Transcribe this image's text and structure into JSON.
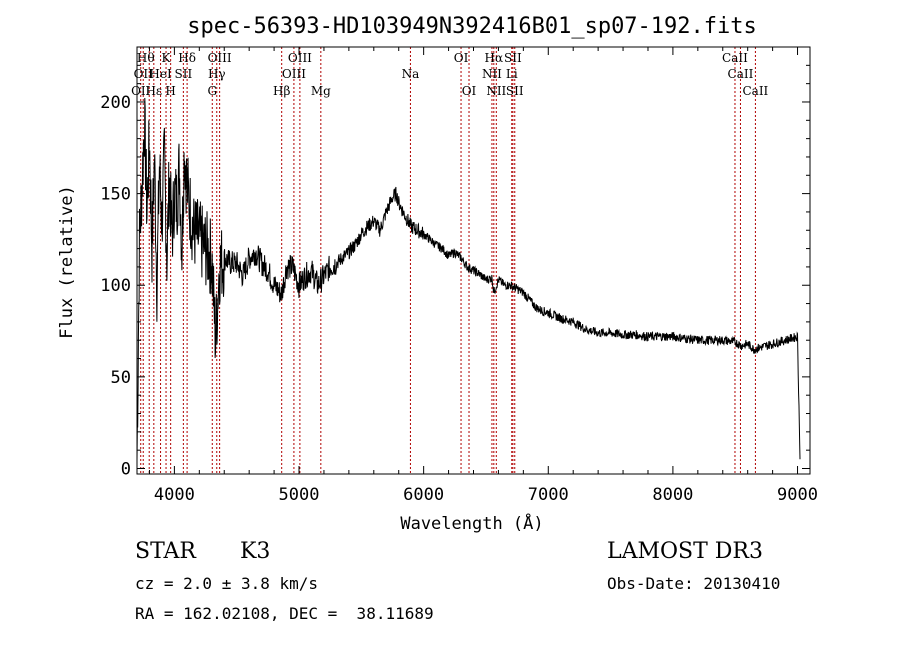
{
  "chart_data": {
    "type": "line",
    "title": "spec-56393-HD103949N392416B01_sp07-192.fits",
    "xlabel": "Wavelength (Å)",
    "ylabel": "Flux (relative)",
    "xlim": [
      3700,
      9100
    ],
    "ylim": [
      -3,
      230
    ],
    "xticks": [
      4000,
      5000,
      6000,
      7000,
      8000,
      9000
    ],
    "yticks": [
      0,
      50,
      100,
      150,
      200
    ],
    "spectrum": {
      "x": [
        3700,
        3720,
        3740,
        3760,
        3780,
        3800,
        3820,
        3840,
        3860,
        3880,
        3900,
        3920,
        3940,
        3960,
        3980,
        4000,
        4020,
        4040,
        4060,
        4080,
        4100,
        4150,
        4200,
        4250,
        4300,
        4330,
        4360,
        4400,
        4450,
        4500,
        4550,
        4600,
        4650,
        4700,
        4750,
        4800,
        4860,
        4900,
        4950,
        5000,
        5050,
        5100,
        5150,
        5200,
        5250,
        5300,
        5350,
        5400,
        5450,
        5500,
        5550,
        5600,
        5650,
        5700,
        5750,
        5780,
        5800,
        5850,
        5900,
        5950,
        6000,
        6050,
        6100,
        6150,
        6200,
        6250,
        6300,
        6350,
        6400,
        6450,
        6500,
        6550,
        6563,
        6600,
        6650,
        6700,
        6750,
        6800,
        6850,
        6900,
        6950,
        7000,
        7100,
        7200,
        7300,
        7400,
        7500,
        7600,
        7700,
        7800,
        7900,
        8000,
        8100,
        8200,
        8300,
        8400,
        8500,
        8550,
        8600,
        8650,
        8700,
        8800,
        8900,
        9000,
        9020
      ],
      "y": [
        5,
        125,
        155,
        190,
        140,
        180,
        120,
        170,
        100,
        165,
        135,
        170,
        115,
        160,
        125,
        150,
        145,
        165,
        120,
        175,
        155,
        130,
        125,
        120,
        115,
        70,
        110,
        115,
        112,
        112,
        105,
        115,
        118,
        112,
        108,
        100,
        95,
        110,
        110,
        100,
        105,
        108,
        100,
        105,
        110,
        112,
        115,
        118,
        122,
        128,
        132,
        135,
        130,
        140,
        148,
        150,
        145,
        138,
        132,
        130,
        128,
        125,
        122,
        120,
        116,
        118,
        115,
        110,
        108,
        106,
        103,
        104,
        96,
        103,
        100,
        100,
        98,
        96,
        92,
        88,
        86,
        85,
        82,
        80,
        76,
        74,
        74,
        73,
        73,
        72,
        72,
        72,
        71,
        70,
        70,
        70,
        69,
        67,
        68,
        65,
        66,
        68,
        70,
        72,
        5
      ]
    },
    "line_markers": [
      {
        "wl": 3730,
        "labels": [
          "OII"
        ]
      },
      {
        "wl": 3750,
        "labels": [
          "Hθ",
          "OII"
        ]
      },
      {
        "wl": 3798,
        "labels": [
          "Hθ"
        ]
      },
      {
        "wl": 3835,
        "labels": [
          "Hε"
        ]
      },
      {
        "wl": 3889,
        "labels": [
          "HeI"
        ]
      },
      {
        "wl": 3933,
        "labels": [
          "K"
        ]
      },
      {
        "wl": 3970,
        "labels": [
          "H",
          "Hε"
        ]
      },
      {
        "wl": 4072,
        "labels": [
          "Hδ",
          "SII"
        ]
      },
      {
        "wl": 4102,
        "labels": [
          "Hδ",
          "SII"
        ]
      },
      {
        "wl": 4304,
        "labels": [
          "G"
        ]
      },
      {
        "wl": 4340,
        "labels": [
          "Hγ",
          "OIII"
        ]
      },
      {
        "wl": 4363,
        "labels": [
          "OIII"
        ]
      },
      {
        "wl": 4861,
        "labels": [
          "Hβ"
        ]
      },
      {
        "wl": 4959,
        "labels": [
          "OIII"
        ]
      },
      {
        "wl": 5007,
        "labels": [
          "OIII"
        ]
      },
      {
        "wl": 5175,
        "labels": [
          "Mg"
        ]
      },
      {
        "wl": 5894,
        "labels": [
          "Na"
        ]
      },
      {
        "wl": 6300,
        "labels": [
          "OI"
        ]
      },
      {
        "wl": 6364,
        "labels": [
          "OI"
        ]
      },
      {
        "wl": 6548,
        "labels": [
          "NII"
        ]
      },
      {
        "wl": 6563,
        "labels": [
          "Hα"
        ]
      },
      {
        "wl": 6583,
        "labels": [
          "NII"
        ]
      },
      {
        "wl": 6707,
        "labels": [
          "Li"
        ]
      },
      {
        "wl": 6716,
        "labels": [
          "SII"
        ]
      },
      {
        "wl": 6731,
        "labels": [
          "SII"
        ]
      },
      {
        "wl": 8498,
        "labels": [
          "CaII"
        ]
      },
      {
        "wl": 8542,
        "labels": [
          "CaII"
        ]
      },
      {
        "wl": 8662,
        "labels": [
          "CaII"
        ]
      }
    ],
    "line_label_rows": [
      {
        "text": "Hθ",
        "wl": 3770,
        "row": 0
      },
      {
        "text": "K",
        "wl": 3933,
        "row": 0
      },
      {
        "text": "Hδ",
        "wl": 4102,
        "row": 0
      },
      {
        "text": "OIII",
        "wl": 4363,
        "row": 0
      },
      {
        "text": "OIII",
        "wl": 5007,
        "row": 0
      },
      {
        "text": "OI",
        "wl": 6300,
        "row": 0
      },
      {
        "text": "Hα",
        "wl": 6563,
        "row": 0
      },
      {
        "text": "SII",
        "wl": 6716,
        "row": 0
      },
      {
        "text": "CaII",
        "wl": 8498,
        "row": 0
      },
      {
        "text": "OII",
        "wl": 3750,
        "row": 1
      },
      {
        "text": "HeI",
        "wl": 3889,
        "row": 1
      },
      {
        "text": "SII",
        "wl": 4072,
        "row": 1
      },
      {
        "text": "Hγ",
        "wl": 4340,
        "row": 1
      },
      {
        "text": "OIII",
        "wl": 4959,
        "row": 1
      },
      {
        "text": "Na",
        "wl": 5894,
        "row": 1
      },
      {
        "text": "NII",
        "wl": 6548,
        "row": 1
      },
      {
        "text": "Li",
        "wl": 6707,
        "row": 1
      },
      {
        "text": "CaII",
        "wl": 8542,
        "row": 1
      },
      {
        "text": "OII",
        "wl": 3730,
        "row": 2
      },
      {
        "text": "Hε",
        "wl": 3835,
        "row": 2
      },
      {
        "text": "H",
        "wl": 3970,
        "row": 2
      },
      {
        "text": "G",
        "wl": 4304,
        "row": 2
      },
      {
        "text": "Hβ",
        "wl": 4861,
        "row": 2
      },
      {
        "text": "Mg",
        "wl": 5175,
        "row": 2
      },
      {
        "text": "OI",
        "wl": 6364,
        "row": 2
      },
      {
        "text": "NII",
        "wl": 6583,
        "row": 2
      },
      {
        "text": "SII",
        "wl": 6731,
        "row": 2
      },
      {
        "text": "CaII",
        "wl": 8662,
        "row": 2
      }
    ],
    "colors": {
      "spectrum": "#000000",
      "markers": "#b00000",
      "axes": "#000000"
    }
  },
  "info": {
    "class": "STAR",
    "subclass": "K3",
    "survey": "LAMOST DR3",
    "cz": "cz = 2.0 ± 3.8 km/s",
    "obs_date": "Obs-Date: 20130410",
    "coords": "RA = 162.02108, DEC =  38.11689"
  }
}
